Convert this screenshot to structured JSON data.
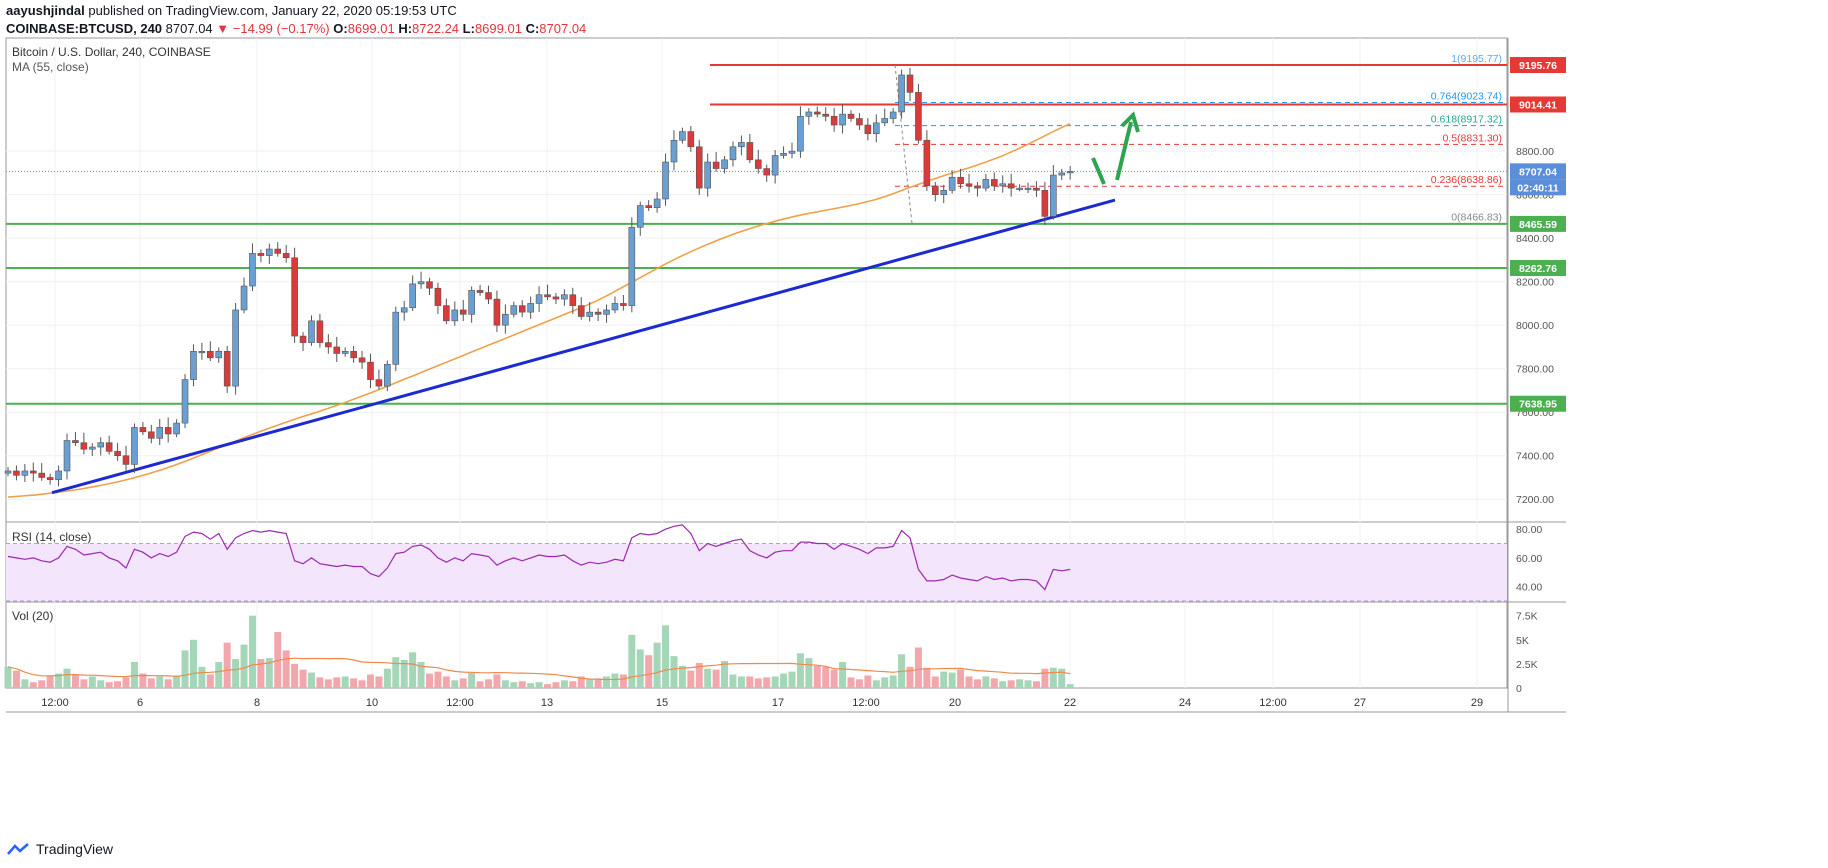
{
  "header": {
    "author": "aayushjindal",
    "published": "published on TradingView.com, January 22, 2020 05:19:53 UTC",
    "symbol": "COINBASE:BTCUSD, 240",
    "last": "8707.04",
    "change": "−14.99 (−0.17%)",
    "o_label": "O:",
    "o_val": "8699.01",
    "h_label": "H:",
    "h_val": "8722.24",
    "l_label": "L:",
    "l_val": "8699.01",
    "c_label": "C:",
    "c_val": "8707.04"
  },
  "pane_title": "Bitcoin / U.S. Dollar, 240, COINBASE",
  "ma_label": "MA (55, close)",
  "rsi_label": "RSI (14, close)",
  "vol_label": "Vol (20)",
  "footer_brand": "TradingView",
  "colors": {
    "up": "#6a9fd4",
    "down": "#d93a3a",
    "ma": "#f0a04b",
    "trend": "#1c2bd1",
    "support": "#4caf50",
    "resistance": "#e53935",
    "rsi": "#9c27b0",
    "arrow": "#2ea44f"
  },
  "chart_data": [
    {
      "type": "candlestick",
      "title": "Bitcoin / U.S. Dollar, 240, COINBASE",
      "x_ticks": [
        "12:00",
        "6",
        "8",
        "10",
        "12:00",
        "13",
        "15",
        "17",
        "12:00",
        "20",
        "22",
        "24",
        "12:00",
        "27",
        "29"
      ],
      "y_ticks": [
        7200,
        7400,
        7600,
        7800,
        8000,
        8200,
        8400,
        8600,
        8800
      ],
      "y_tick_labels": [
        "7200.00",
        "7400.00",
        "7600.00",
        "7800.00",
        "8000.00",
        "8200.00",
        "8400.00",
        "8600.00",
        "8800.00"
      ],
      "ylim": [
        7100,
        9320
      ],
      "candles_close": [
        7330,
        7310,
        7330,
        7320,
        7300,
        7290,
        7330,
        7470,
        7460,
        7430,
        7440,
        7460,
        7420,
        7400,
        7360,
        7530,
        7510,
        7480,
        7530,
        7500,
        7550,
        7750,
        7880,
        7880,
        7850,
        7880,
        7720,
        8070,
        8180,
        8330,
        8320,
        8350,
        8330,
        8310,
        7950,
        7920,
        8020,
        7920,
        7900,
        7870,
        7880,
        7850,
        7830,
        7750,
        7720,
        7820,
        8060,
        8080,
        8190,
        8200,
        8170,
        8090,
        8020,
        8070,
        8050,
        8160,
        8150,
        8120,
        8000,
        8050,
        8090,
        8060,
        8100,
        8140,
        8130,
        8120,
        8140,
        8090,
        8040,
        8060,
        8050,
        8070,
        8100,
        8090,
        8450,
        8550,
        8540,
        8580,
        8750,
        8850,
        8890,
        8820,
        8630,
        8750,
        8720,
        8760,
        8820,
        8840,
        8760,
        8720,
        8690,
        8780,
        8790,
        8800,
        8960,
        8980,
        8970,
        8960,
        8920,
        8970,
        8950,
        8920,
        8880,
        8930,
        8950,
        8980,
        9150,
        9070,
        8850,
        8640,
        8600,
        8620,
        8680,
        8650,
        8640,
        8630,
        8670,
        8640,
        8650,
        8630,
        8630,
        8630,
        8620,
        8500,
        8690,
        8700,
        8707
      ],
      "series": [
        {
          "name": "MA (55, close)",
          "values_approx": [
            7210,
            7215,
            7220,
            7228,
            7236,
            7245,
            7256,
            7268,
            7282,
            7298,
            7316,
            7336,
            7358,
            7382,
            7408,
            7434,
            7460,
            7486,
            7510,
            7534,
            7556,
            7578,
            7598,
            7620,
            7642,
            7666,
            7690,
            7716,
            7742,
            7768,
            7794,
            7820,
            7846,
            7872,
            7898,
            7924,
            7950,
            7976,
            8002,
            8028,
            8054,
            8080,
            8108,
            8140,
            8175,
            8210,
            8245,
            8280,
            8312,
            8342,
            8370,
            8396,
            8420,
            8442,
            8462,
            8480,
            8496,
            8510,
            8522,
            8534,
            8546,
            8560,
            8576,
            8596,
            8620,
            8644,
            8666,
            8688,
            8708,
            8728,
            8750,
            8774,
            8802,
            8832,
            8864,
            8896,
            8926
          ]
        }
      ],
      "horizontal_levels": [
        {
          "label": "9195.76",
          "color": "#e53935"
        },
        {
          "label": "9014.41",
          "color": "#e53935"
        },
        {
          "label": "8707.04",
          "color": "#5b8ed8"
        },
        {
          "label": "02:40:11",
          "color": "#5b8ed8"
        },
        {
          "label": "8465.59",
          "color": "#4caf50"
        },
        {
          "label": "8262.76",
          "color": "#4caf50"
        },
        {
          "label": "7638.95",
          "color": "#4caf50"
        }
      ],
      "fibonacci": [
        {
          "ratio": "1",
          "price": "9195.77",
          "text": "1(9195.77)",
          "color": "#5fa8e6"
        },
        {
          "ratio": "0.764",
          "price": "9023.74",
          "text": "0.764(9023.74)",
          "color": "#2196f3"
        },
        {
          "ratio": "0.618",
          "price": "8917.32",
          "text": "0.618(8917.32)",
          "color": "#26a69a"
        },
        {
          "ratio": "0.5",
          "price": "8831.30",
          "text": "0.5(8831.30)",
          "color": "#e53935"
        },
        {
          "ratio": "0.236",
          "price": "8638.86",
          "text": "0.236(8638.86)",
          "color": "#e53935"
        },
        {
          "ratio": "0",
          "price": "8466.83",
          "text": "0(8466.83)",
          "color": "#888888"
        }
      ]
    },
    {
      "type": "line",
      "title": "RSI (14, close)",
      "y_ticks": [
        40,
        60,
        80
      ],
      "y_tick_labels": [
        "40.00",
        "60.00",
        "80.00"
      ],
      "ylim": [
        30,
        85
      ],
      "bands": [
        30,
        70
      ],
      "values": [
        61,
        60,
        59,
        60,
        58,
        57,
        60,
        68,
        66,
        62,
        63,
        64,
        60,
        58,
        53,
        66,
        64,
        60,
        63,
        61,
        64,
        75,
        78,
        77,
        73,
        77,
        66,
        74,
        77,
        79,
        78,
        79,
        78,
        77,
        58,
        56,
        60,
        56,
        55,
        54,
        55,
        54,
        54,
        49,
        47,
        53,
        63,
        64,
        68,
        69,
        66,
        60,
        57,
        60,
        58,
        63,
        62,
        61,
        55,
        58,
        60,
        58,
        60,
        62,
        61,
        61,
        62,
        58,
        55,
        57,
        56,
        57,
        59,
        58,
        74,
        77,
        76,
        77,
        80,
        82,
        83,
        77,
        65,
        70,
        68,
        70,
        72,
        73,
        65,
        62,
        60,
        64,
        65,
        65,
        71,
        71,
        70,
        70,
        66,
        70,
        68,
        66,
        63,
        67,
        67,
        68,
        79,
        74,
        52,
        44,
        44,
        45,
        48,
        46,
        45,
        44,
        47,
        45,
        46,
        44,
        45,
        45,
        44,
        38,
        52,
        51,
        52
      ]
    },
    {
      "type": "bar",
      "title": "Vol (20)",
      "y_ticks": [
        0,
        2500,
        5000,
        7500
      ],
      "y_tick_labels": [
        "0",
        "2.5K",
        "5K",
        "7.5K"
      ],
      "ylim": [
        0,
        8500
      ],
      "values": [
        2200,
        1800,
        900,
        600,
        800,
        1300,
        1500,
        2000,
        1400,
        900,
        1200,
        800,
        600,
        700,
        1100,
        2700,
        1500,
        1000,
        1200,
        900,
        1300,
        3900,
        5000,
        2200,
        1400,
        2700,
        4700,
        3000,
        4500,
        7500,
        3000,
        3100,
        5800,
        3900,
        2500,
        1900,
        1600,
        1100,
        900,
        1100,
        1200,
        1000,
        800,
        1400,
        1200,
        2000,
        3200,
        2900,
        3700,
        2700,
        1500,
        1700,
        1200,
        800,
        1000,
        1600,
        700,
        900,
        1400,
        800,
        600,
        700,
        500,
        600,
        400,
        600,
        800,
        700,
        1200,
        900,
        1000,
        1200,
        1500,
        1400,
        5500,
        4000,
        3400,
        4700,
        6500,
        3300,
        2300,
        1800,
        2600,
        2000,
        1900,
        2800,
        1400,
        1200,
        1200,
        1000,
        1100,
        1200,
        1500,
        1700,
        3600,
        3100,
        2300,
        2200,
        1900,
        2700,
        1100,
        900,
        1300,
        800,
        1100,
        1300,
        3500,
        2200,
        4200,
        2100,
        1200,
        1700,
        1600,
        1900,
        1200,
        900,
        1200,
        1000,
        700,
        800,
        900,
        800,
        700,
        2000,
        2100,
        2000,
        400
      ]
    }
  ]
}
